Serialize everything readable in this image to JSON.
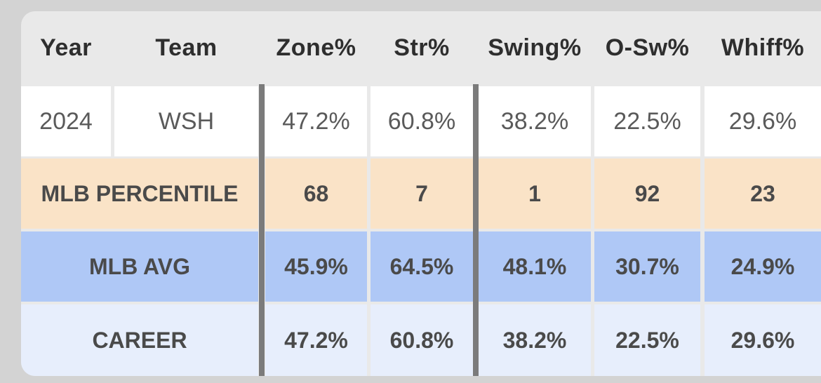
{
  "table": {
    "headers": [
      "Year",
      "Team",
      "Zone%",
      "Str%",
      "Swing%",
      "O-Sw%",
      "Whiff%"
    ],
    "season_row": {
      "year": "2024",
      "team": "WSH",
      "values": [
        "47.2%",
        "60.8%",
        "38.2%",
        "22.5%",
        "29.6%"
      ]
    },
    "percentile_row": {
      "label": "MLB PERCENTILE",
      "values": [
        "68",
        "7",
        "1",
        "92",
        "23"
      ]
    },
    "avg_row": {
      "label": "MLB AVG",
      "values": [
        "45.9%",
        "64.5%",
        "48.1%",
        "30.7%",
        "24.9%"
      ]
    },
    "career_row": {
      "label": "CAREER",
      "values": [
        "47.2%",
        "60.8%",
        "38.2%",
        "22.5%",
        "29.6%"
      ]
    }
  },
  "colors": {
    "page_bg": "#d3d3d3",
    "header_bg": "#e9e9e9",
    "season_bg": "#ffffff",
    "percentile_bg": "#fae3c7",
    "avg_bg": "#afc8f6",
    "career_bg": "#e7eefc",
    "divider": "#7b7b7b"
  }
}
